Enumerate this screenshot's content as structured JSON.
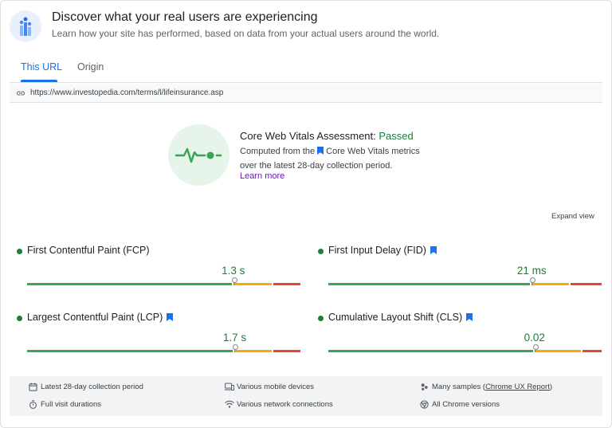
{
  "header": {
    "title": "Discover what your real users are experiencing",
    "subtitle": "Learn how your site has performed, based on data from your actual users around the world."
  },
  "tabs": [
    {
      "label": "This URL",
      "active": true
    },
    {
      "label": "Origin",
      "active": false
    }
  ],
  "url": "https://www.investopedia.com/terms/l/lifeinsurance.asp",
  "assessment": {
    "title": "Core Web Vitals Assessment:",
    "status": "Passed",
    "desc_prefix": "Computed from the",
    "desc_link": "Core Web Vitals metrics",
    "desc_line2": "over the latest 28-day collection period.",
    "learn_more": "Learn more"
  },
  "expand_view": "Expand view",
  "metrics": [
    {
      "name": "First Contentful Paint (FCP)",
      "value": "1.3 s",
      "core": false,
      "good": 0.75,
      "ni": 0.145,
      "poor": 0.105,
      "marker": 0.75
    },
    {
      "name": "First Input Delay (FID)",
      "value": "21 ms",
      "core": true,
      "good": 0.74,
      "ni": 0.14,
      "poor": 0.12,
      "marker": 0.74
    },
    {
      "name": "Largest Contentful Paint (LCP)",
      "value": "1.7 s",
      "core": true,
      "good": 0.755,
      "ni": 0.14,
      "poor": 0.105,
      "marker": 0.755
    },
    {
      "name": "Cumulative Layout Shift (CLS)",
      "value": "0.02",
      "core": true,
      "good": 0.75,
      "ni": 0.175,
      "poor": 0.075,
      "marker": 0.75
    }
  ],
  "footer": {
    "collection_period": "Latest 28-day collection period",
    "devices": "Various mobile devices",
    "samples_prefix": "Many samples (",
    "samples_link": "Chrome UX Report",
    "samples_suffix": ")",
    "durations": "Full visit durations",
    "connections": "Various network connections",
    "versions": "All Chrome versions"
  },
  "colors": {
    "accent": "#1a73e8",
    "good": "#188038",
    "bar_good": "#34a853",
    "bar_ni": "#f9ab00",
    "bar_poor": "#ea4335"
  }
}
